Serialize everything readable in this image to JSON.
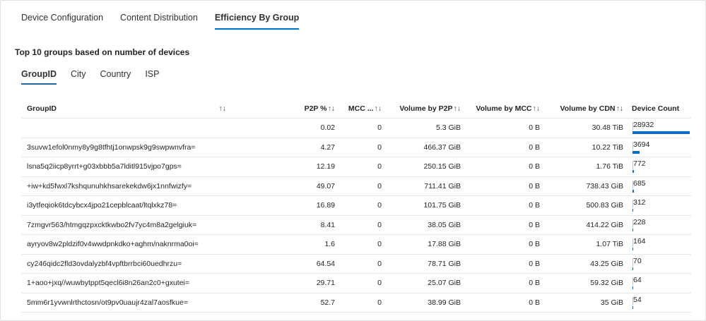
{
  "tabs": [
    {
      "label": "Device Configuration",
      "active": false
    },
    {
      "label": "Content Distribution",
      "active": false
    },
    {
      "label": "Efficiency By Group",
      "active": true
    }
  ],
  "section_title": "Top 10 groups based on number of devices",
  "sub_tabs": [
    {
      "label": "GroupID",
      "active": true
    },
    {
      "label": "City",
      "active": false
    },
    {
      "label": "Country",
      "active": false
    },
    {
      "label": "ISP",
      "active": false
    }
  ],
  "table": {
    "headers": {
      "group": "GroupID",
      "group_sort": "↑↓",
      "p2p": "P2P %",
      "p2p_sort": "↑↓",
      "mcc": "MCC ...",
      "mcc_sort": "↑↓",
      "vol_p2p": "Volume by P2P",
      "vol_p2p_sort": "↑↓",
      "vol_mcc": "Volume by MCC",
      "vol_mcc_sort": "↑↓",
      "vol_cdn": "Volume by CDN",
      "vol_cdn_sort": "↑↓",
      "device_count": "Device Count"
    },
    "device_count_max": 28932,
    "rows": [
      {
        "group": "",
        "p2p": "0.02",
        "mcc": "0",
        "vol_p2p": "5.3 GiB",
        "vol_mcc": "0 B",
        "vol_cdn": "30.48 TiB",
        "device_count": "28932",
        "device_value": 28932
      },
      {
        "group": "3suvw1efol0nmy8y9g8tfhtj1onwpsk9g9swpwnvfra=",
        "p2p": "4.27",
        "mcc": "0",
        "vol_p2p": "466.37 GiB",
        "vol_mcc": "0 B",
        "vol_cdn": "10.22 TiB",
        "device_count": "3694",
        "device_value": 3694
      },
      {
        "group": "lsna5q2iicp8yrrt+g03xbbb5a7lditl915vjpo7gps=",
        "p2p": "12.19",
        "mcc": "0",
        "vol_p2p": "250.15 GiB",
        "vol_mcc": "0 B",
        "vol_cdn": "1.76 TiB",
        "device_count": "772",
        "device_value": 772
      },
      {
        "group": "+iw+kd5fwxl7kshqunuhkhsarekekdw6jx1nnfwizfy=",
        "p2p": "49.07",
        "mcc": "0",
        "vol_p2p": "711.41 GiB",
        "vol_mcc": "0 B",
        "vol_cdn": "738.43 GiB",
        "device_count": "685",
        "device_value": 685
      },
      {
        "group": "i3ytfeqiok6tdcybcx4jpo21cepblcaat/ltqlxkz78=",
        "p2p": "16.89",
        "mcc": "0",
        "vol_p2p": "101.75 GiB",
        "vol_mcc": "0 B",
        "vol_cdn": "500.83 GiB",
        "device_count": "312",
        "device_value": 312
      },
      {
        "group": "7zmgvr563/htmgqzpxcktkwbo2fv7yc4m8a2gelgiuk=",
        "p2p": "8.41",
        "mcc": "0",
        "vol_p2p": "38.05 GiB",
        "vol_mcc": "0 B",
        "vol_cdn": "414.22 GiB",
        "device_count": "228",
        "device_value": 228
      },
      {
        "group": "ayryov8w2pldzif0v4wwdpnkdko+aghm/naknrma0oi=",
        "p2p": "1.6",
        "mcc": "0",
        "vol_p2p": "17.88 GiB",
        "vol_mcc": "0 B",
        "vol_cdn": "1.07 TiB",
        "device_count": "164",
        "device_value": 164
      },
      {
        "group": "cy246qidc2fld3ovdalyzbf4vpftbrrbci60uedhrzu=",
        "p2p": "64.54",
        "mcc": "0",
        "vol_p2p": "78.71 GiB",
        "vol_mcc": "0 B",
        "vol_cdn": "43.25 GiB",
        "device_count": "70",
        "device_value": 70
      },
      {
        "group": "1+aoo+jxq//wuwbytppt5qecl6i8n26an2c0+gxutei=",
        "p2p": "29.71",
        "mcc": "0",
        "vol_p2p": "25.07 GiB",
        "vol_mcc": "0 B",
        "vol_cdn": "59.32 GiB",
        "device_count": "64",
        "device_value": 64
      },
      {
        "group": "5mm6r1yvwnlrthctosn/ot9pv0uaujr4zal7aosfkue=",
        "p2p": "52.7",
        "mcc": "0",
        "vol_p2p": "38.99 GiB",
        "vol_mcc": "0 B",
        "vol_cdn": "35 GiB",
        "device_count": "54",
        "device_value": 54
      }
    ]
  },
  "colors": {
    "accent": "#0f6cbd"
  }
}
